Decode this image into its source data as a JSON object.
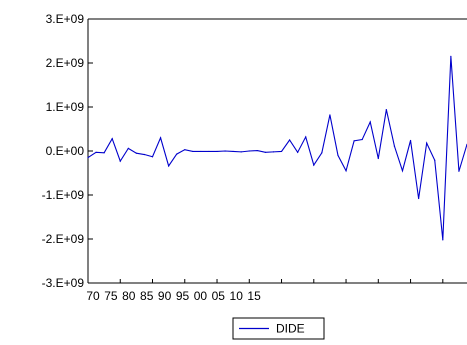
{
  "chart_data": {
    "type": "line",
    "title": "",
    "xlabel": "",
    "ylabel": "",
    "ylim": [
      -3000000000,
      3000000000
    ],
    "y_ticks": [
      {
        "value": 3000000000,
        "label": "3.E+09"
      },
      {
        "value": 2000000000,
        "label": "2.E+09"
      },
      {
        "value": 1000000000,
        "label": "1.E+09"
      },
      {
        "value": 0,
        "label": "0.E+00"
      },
      {
        "value": -1000000000,
        "label": "-1.E+09"
      },
      {
        "value": -2000000000,
        "label": "-2.E+09"
      },
      {
        "value": -3000000000,
        "label": "-3.E+09"
      }
    ],
    "x_tick_labels": [
      "70",
      "75",
      "80",
      "85",
      "90",
      "95",
      "00",
      "05",
      "10",
      "15"
    ],
    "grid": false,
    "legend_position": "bottom-center",
    "series": [
      {
        "name": "DIDE",
        "color": "#0000cc",
        "values": [
          -150000000,
          -30000000,
          -40000000,
          280000000,
          -230000000,
          60000000,
          -50000000,
          -80000000,
          -130000000,
          300000000,
          -340000000,
          -70000000,
          30000000,
          -10000000,
          -10000000,
          -10000000,
          -10000000,
          0,
          -10000000,
          -20000000,
          0,
          10000000,
          -30000000,
          -20000000,
          -10000000,
          250000000,
          -30000000,
          320000000,
          -320000000,
          -40000000,
          820000000,
          -100000000,
          -450000000,
          230000000,
          260000000,
          660000000,
          -170000000,
          940000000,
          110000000,
          -450000000,
          240000000,
          -1080000000,
          180000000,
          -210000000,
          -2020000000,
          2150000000,
          -460000000,
          150000000
        ]
      }
    ]
  }
}
